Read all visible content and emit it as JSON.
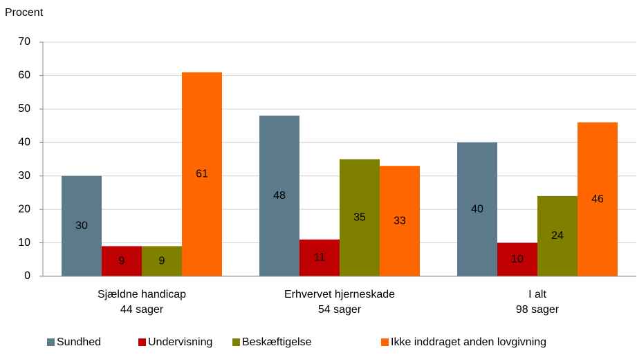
{
  "chart_data": {
    "type": "bar",
    "y_label": "Procent",
    "categories": [
      [
        "Sjældne handicap",
        "44 sager"
      ],
      [
        "Erhvervet hjerneskade",
        "54 sager"
      ],
      [
        "I alt",
        "98 sager"
      ]
    ],
    "series": [
      {
        "name": "Sundhed",
        "color": "#5b7a8c",
        "values": [
          30,
          48,
          40
        ]
      },
      {
        "name": "Undervisning",
        "color": "#c00000",
        "values": [
          9,
          11,
          10
        ]
      },
      {
        "name": "Beskæftigelse",
        "color": "#7f8000",
        "values": [
          9,
          35,
          24
        ]
      },
      {
        "name": "Ikke inddraget anden lovgivning",
        "color": "#ff6600",
        "values": [
          61,
          33,
          46
        ]
      }
    ],
    "ylim": [
      0,
      70
    ],
    "yticks": [
      0,
      10,
      20,
      30,
      40,
      50,
      60,
      70
    ],
    "grid": true,
    "legend": "bottom"
  }
}
